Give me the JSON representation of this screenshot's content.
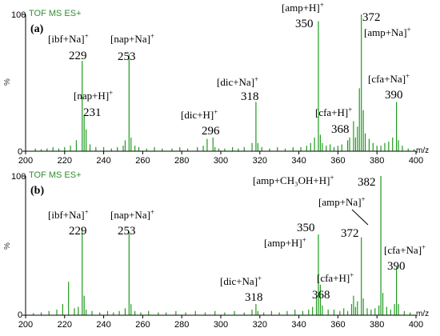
{
  "chart_data": [
    {
      "type": "bar",
      "panel_label": "(a)",
      "header": "TOF MS ES+",
      "xunit": "m/z",
      "y_marker": "%",
      "xlim": [
        200,
        400
      ],
      "ylim": [
        0,
        100
      ],
      "xticks": [
        "200",
        "220",
        "240",
        "260",
        "280",
        "300",
        "320",
        "340",
        "360",
        "380",
        "400"
      ],
      "yticks": [
        "0",
        "100"
      ],
      "color": "#1f9a1f",
      "series": [
        {
          "x": [
            205,
            208,
            211,
            214,
            217,
            220,
            223,
            226,
            229,
            230,
            231,
            233,
            236,
            240,
            244,
            247,
            250,
            251,
            253,
            254,
            256,
            258,
            262,
            266,
            270,
            275,
            279,
            283,
            288,
            291,
            293,
            296,
            297,
            299,
            302,
            306,
            309,
            312,
            316,
            318,
            319,
            321,
            325,
            329,
            333,
            337,
            341,
            344,
            346,
            348,
            350,
            351,
            352,
            354,
            356,
            358,
            360,
            362,
            365,
            366,
            368,
            369,
            370,
            371,
            372,
            373,
            374,
            376,
            378,
            380,
            382,
            384,
            386,
            388,
            390,
            391,
            393,
            396,
            399
          ],
          "y": [
            2,
            1.5,
            2,
            3,
            2,
            3,
            4,
            8,
            66,
            26,
            16,
            5,
            3,
            3,
            2,
            3,
            4,
            8,
            71,
            10,
            4,
            3,
            2,
            3,
            2,
            2,
            3,
            2,
            3,
            4,
            9,
            10,
            3,
            2,
            2,
            3,
            2,
            3,
            6,
            36,
            6,
            3,
            2,
            3,
            2,
            3,
            3,
            4,
            6,
            10,
            95,
            12,
            6,
            4,
            5,
            3,
            4,
            5,
            8,
            10,
            22,
            10,
            18,
            46,
            100,
            30,
            13,
            9,
            6,
            4,
            4,
            6,
            7,
            10,
            36,
            8,
            4,
            2,
            1.5
          ]
        }
      ],
      "annotations": [
        {
          "label": "[ibf+Na]",
          "sup": "+",
          "mz": "229"
        },
        {
          "label": "[nap+Na]",
          "sup": "+",
          "mz": "253"
        },
        {
          "label": "[nap+H]",
          "sup": "+",
          "mz": "231"
        },
        {
          "label": "[dic+Na]",
          "sup": "+",
          "mz": "318"
        },
        {
          "label": "[dic+H]",
          "sup": "+",
          "mz": "296"
        },
        {
          "label": "[amp+H]",
          "sup": "+",
          "mz": "350"
        },
        {
          "label": "[amp+Na]",
          "sup": "+",
          "mz": "372"
        },
        {
          "label": "[cfa+H]",
          "sup": "+",
          "mz": "368"
        },
        {
          "label": "[cfa+Na]",
          "sup": "+",
          "mz": "390"
        }
      ]
    },
    {
      "type": "bar",
      "panel_label": "(b)",
      "header": "TOF MS ES+",
      "xunit": "m/z",
      "y_marker": "%",
      "xlim": [
        200,
        400
      ],
      "ylim": [
        0,
        100
      ],
      "xticks": [
        "200",
        "220",
        "240",
        "260",
        "280",
        "300",
        "320",
        "340",
        "360",
        "380",
        "400"
      ],
      "yticks": [
        "0",
        "100"
      ],
      "color": "#1f9a1f",
      "series": [
        {
          "x": [
            204,
            208,
            212,
            216,
            219,
            222,
            225,
            227,
            229,
            230,
            231,
            234,
            238,
            242,
            245,
            248,
            251,
            253,
            254,
            256,
            259,
            263,
            268,
            272,
            277,
            282,
            287,
            292,
            297,
            302,
            307,
            312,
            316,
            318,
            319,
            322,
            326,
            330,
            334,
            338,
            342,
            345,
            347,
            349,
            350,
            351,
            352,
            355,
            358,
            361,
            363,
            365,
            367,
            368,
            369,
            370,
            372,
            373,
            375,
            377,
            379,
            381,
            382,
            383,
            385,
            387,
            389,
            390,
            391,
            394,
            397
          ],
          "y": [
            1.5,
            2,
            3,
            4,
            8,
            24,
            5,
            6,
            62,
            14,
            4,
            3,
            2,
            3,
            2,
            3,
            5,
            60,
            8,
            3,
            2,
            3,
            2,
            2,
            3,
            2,
            3,
            2,
            3,
            2,
            3,
            2,
            4,
            8,
            3,
            2,
            3,
            2,
            3,
            4,
            3,
            4,
            6,
            14,
            58,
            22,
            7,
            4,
            4,
            3,
            5,
            3,
            8,
            14,
            6,
            10,
            56,
            12,
            5,
            4,
            5,
            7,
            100,
            16,
            6,
            4,
            8,
            35,
            8,
            3,
            2
          ]
        }
      ],
      "annotations": [
        {
          "label": "[amp+CH₃OH+H]",
          "sup": "+",
          "mz": "382"
        },
        {
          "label": "[ibf+Na]",
          "sup": "+",
          "mz": "229"
        },
        {
          "label": "[nap+Na]",
          "sup": "+",
          "mz": "253"
        },
        {
          "label": "[amp+Na]",
          "sup": "+",
          "mz": "372"
        },
        {
          "label": "[amp+H]",
          "sup": "+",
          "mz": "350"
        },
        {
          "label": "[cfa+Na]",
          "sup": "+",
          "mz": "390"
        },
        {
          "label": "[dic+Na]",
          "sup": "+",
          "mz": "318"
        },
        {
          "label": "[cfa+H]",
          "sup": "+",
          "mz": "368"
        }
      ]
    }
  ]
}
